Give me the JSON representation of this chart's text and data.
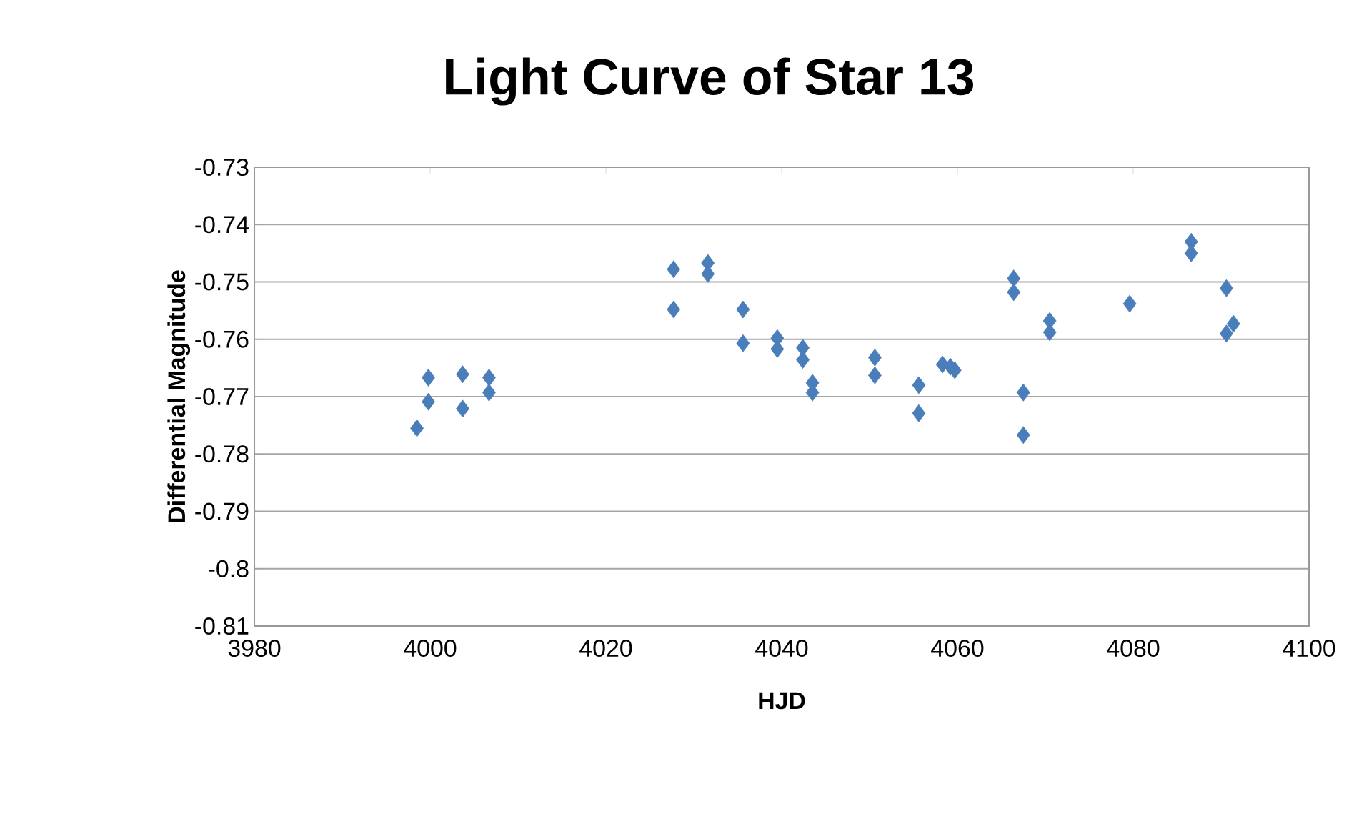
{
  "chart_data": {
    "type": "scatter",
    "title": "Light Curve of Star 13",
    "xlabel": "HJD",
    "ylabel": "Differential Magnitude",
    "x": [
      3998.5,
      3999.8,
      3999.8,
      4003.7,
      4003.7,
      4006.7,
      4006.7,
      4027.7,
      4027.7,
      4031.6,
      4031.6,
      4035.6,
      4035.6,
      4039.5,
      4039.5,
      4042.4,
      4042.4,
      4043.5,
      4043.5,
      4050.6,
      4050.6,
      4055.6,
      4055.6,
      4058.3,
      4059.2,
      4059.7,
      4066.4,
      4066.4,
      4067.5,
      4067.5,
      4070.5,
      4070.5,
      4079.6,
      4086.6,
      4086.6,
      4090.6,
      4090.6,
      4091.4
    ],
    "values": [
      -0.7755,
      -0.7667,
      -0.7709,
      -0.7661,
      -0.7721,
      -0.7667,
      -0.7693,
      -0.7478,
      -0.7548,
      -0.7467,
      -0.7486,
      -0.7548,
      -0.7607,
      -0.7598,
      -0.7617,
      -0.7615,
      -0.7636,
      -0.7676,
      -0.7693,
      -0.7632,
      -0.7663,
      -0.768,
      -0.7729,
      -0.7644,
      -0.7648,
      -0.7654,
      -0.7494,
      -0.7518,
      -0.7693,
      -0.7767,
      -0.7568,
      -0.7588,
      -0.7538,
      -0.743,
      -0.745,
      -0.7511,
      -0.759,
      -0.7573
    ],
    "color": "#4a7ebb",
    "marker": "diamond",
    "grid": "y",
    "xlim": [
      3980,
      4100
    ],
    "xticks": [
      3980,
      4000,
      4020,
      4040,
      4060,
      4080,
      4100
    ],
    "ylim": [
      -0.81,
      -0.73
    ],
    "yticks": [
      -0.81,
      -0.8,
      -0.79,
      -0.78,
      -0.77,
      -0.76,
      -0.75,
      -0.74,
      -0.73
    ]
  }
}
